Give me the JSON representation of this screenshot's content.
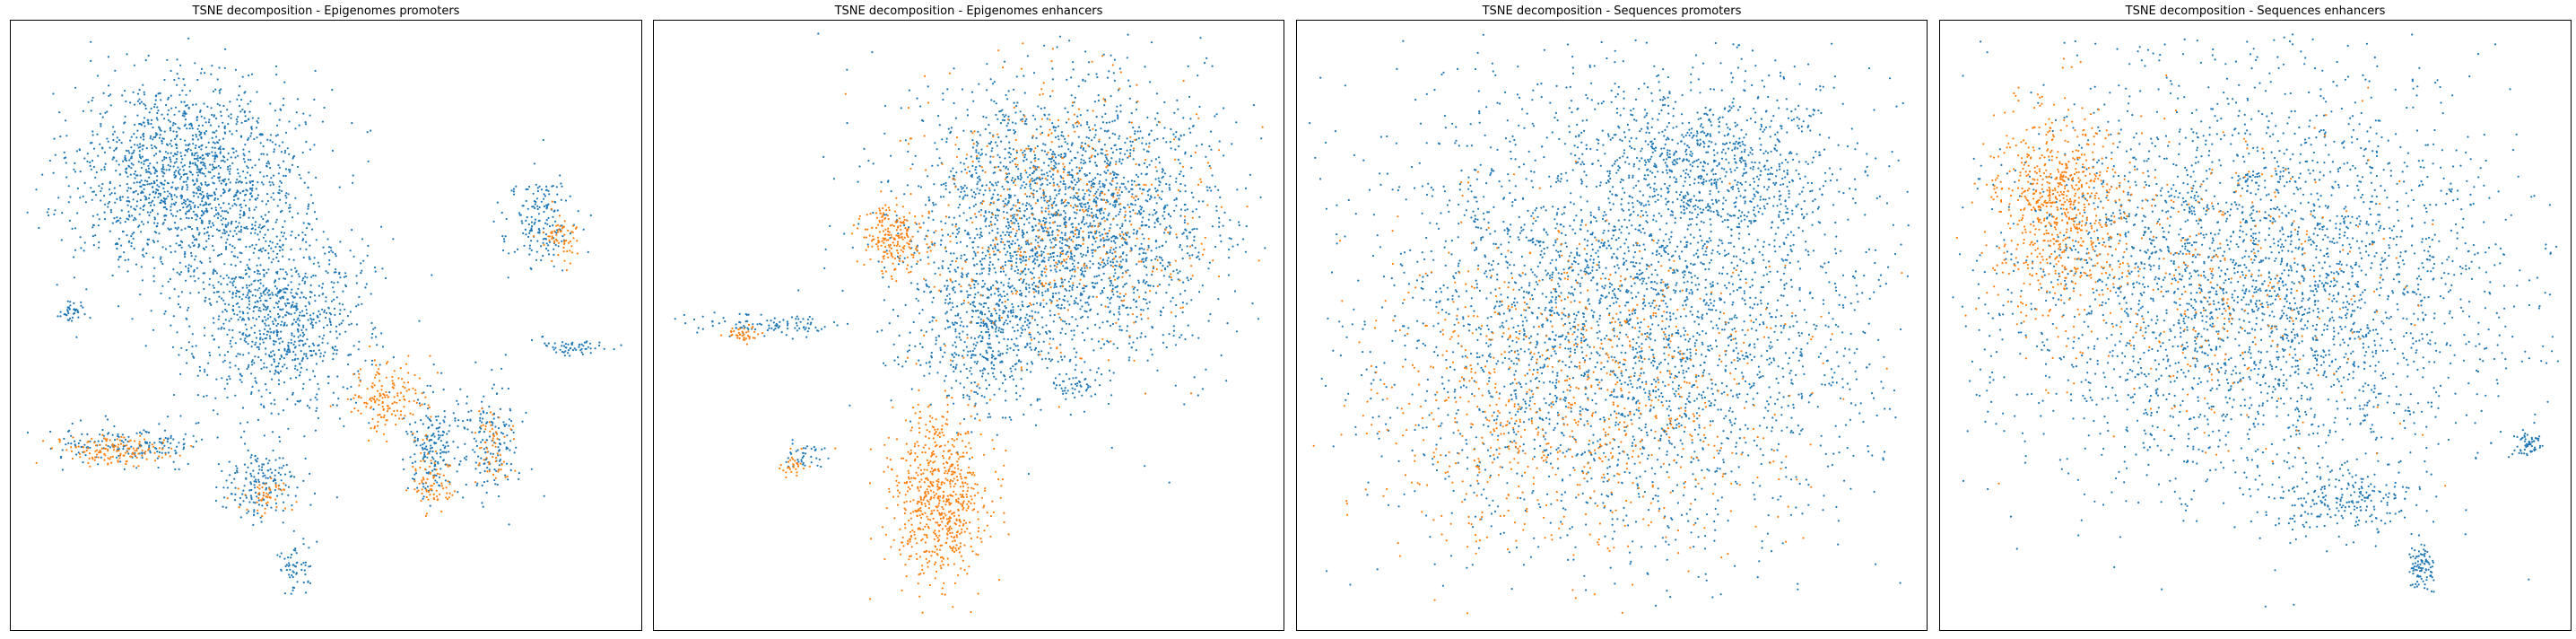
{
  "colors": {
    "blue": "#1f77b4",
    "orange": "#ff7f0e",
    "frame": "#000000",
    "background": "#ffffff"
  },
  "chart_data": [
    {
      "type": "scatter",
      "title": "TSNE decomposition - Epigenomes promoters",
      "xlabel": "",
      "ylabel": "",
      "grid": false,
      "legend": "none",
      "xlim": [
        -1,
        1
      ],
      "ylim": [
        -1,
        1
      ],
      "series": [
        {
          "color": "#1f77b4",
          "clusters": [
            {
              "cx": -0.45,
              "cy": 0.5,
              "rx": 0.38,
              "ry": 0.36,
              "n": 1600
            },
            {
              "cx": -0.15,
              "cy": 0.02,
              "rx": 0.3,
              "ry": 0.3,
              "n": 900
            },
            {
              "cx": 0.7,
              "cy": 0.35,
              "rx": 0.12,
              "ry": 0.15,
              "n": 170
            },
            {
              "cx": -0.65,
              "cy": -0.4,
              "rx": 0.25,
              "ry": 0.07,
              "n": 170
            },
            {
              "cx": 0.35,
              "cy": -0.42,
              "rx": 0.08,
              "ry": 0.18,
              "n": 180
            },
            {
              "cx": -0.22,
              "cy": -0.55,
              "rx": 0.13,
              "ry": 0.12,
              "n": 170
            },
            {
              "cx": 0.55,
              "cy": -0.4,
              "rx": 0.1,
              "ry": 0.2,
              "n": 160
            },
            {
              "cx": -0.1,
              "cy": -0.82,
              "rx": 0.06,
              "ry": 0.1,
              "n": 60
            },
            {
              "cx": 0.82,
              "cy": -0.07,
              "rx": 0.12,
              "ry": 0.03,
              "n": 60
            },
            {
              "cx": -0.85,
              "cy": 0.05,
              "rx": 0.05,
              "ry": 0.04,
              "n": 40
            }
          ]
        },
        {
          "color": "#ff7f0e",
          "clusters": [
            {
              "cx": 0.2,
              "cy": -0.25,
              "rx": 0.12,
              "ry": 0.12,
              "n": 160
            },
            {
              "cx": -0.68,
              "cy": -0.43,
              "rx": 0.2,
              "ry": 0.05,
              "n": 140
            },
            {
              "cx": 0.35,
              "cy": -0.52,
              "rx": 0.07,
              "ry": 0.12,
              "n": 80
            },
            {
              "cx": 0.55,
              "cy": -0.42,
              "rx": 0.06,
              "ry": 0.15,
              "n": 60
            },
            {
              "cx": 0.78,
              "cy": 0.3,
              "rx": 0.06,
              "ry": 0.1,
              "n": 60
            },
            {
              "cx": -0.2,
              "cy": -0.58,
              "rx": 0.08,
              "ry": 0.06,
              "n": 50
            }
          ]
        }
      ]
    },
    {
      "type": "scatter",
      "title": "TSNE decomposition - Epigenomes enhancers",
      "xlabel": "",
      "ylabel": "",
      "grid": false,
      "legend": "none",
      "xlim": [
        -1,
        1
      ],
      "ylim": [
        -1,
        1
      ],
      "series": [
        {
          "color": "#1f77b4",
          "clusters": [
            {
              "cx": 0.3,
              "cy": 0.35,
              "rx": 0.52,
              "ry": 0.48,
              "n": 2500
            },
            {
              "cx": 0.05,
              "cy": -0.05,
              "rx": 0.22,
              "ry": 0.25,
              "n": 400
            },
            {
              "cx": -0.65,
              "cy": 0.0,
              "rx": 0.25,
              "ry": 0.04,
              "n": 100
            },
            {
              "cx": -0.55,
              "cy": -0.45,
              "rx": 0.07,
              "ry": 0.05,
              "n": 40
            },
            {
              "cx": 0.35,
              "cy": -0.2,
              "rx": 0.06,
              "ry": 0.05,
              "n": 40
            }
          ]
        },
        {
          "color": "#ff7f0e",
          "clusters": [
            {
              "cx": -0.1,
              "cy": -0.58,
              "rx": 0.16,
              "ry": 0.28,
              "n": 700
            },
            {
              "cx": -0.25,
              "cy": 0.3,
              "rx": 0.1,
              "ry": 0.12,
              "n": 200
            },
            {
              "cx": 0.3,
              "cy": 0.35,
              "rx": 0.5,
              "ry": 0.45,
              "n": 500
            },
            {
              "cx": -0.75,
              "cy": -0.03,
              "rx": 0.06,
              "ry": 0.03,
              "n": 40
            },
            {
              "cx": -0.58,
              "cy": -0.48,
              "rx": 0.05,
              "ry": 0.04,
              "n": 30
            }
          ]
        }
      ]
    },
    {
      "type": "scatter",
      "title": "TSNE decomposition - Sequences promoters",
      "xlabel": "",
      "ylabel": "",
      "grid": false,
      "legend": "none",
      "xlim": [
        -1,
        1
      ],
      "ylim": [
        -1,
        1
      ],
      "series": [
        {
          "color": "#1f77b4",
          "clusters": [
            {
              "cx": 0.05,
              "cy": 0.05,
              "rx": 0.82,
              "ry": 0.78,
              "n": 3200
            },
            {
              "cx": 0.35,
              "cy": 0.55,
              "rx": 0.4,
              "ry": 0.3,
              "n": 700
            }
          ]
        },
        {
          "color": "#ff7f0e",
          "clusters": [
            {
              "cx": -0.15,
              "cy": -0.25,
              "rx": 0.75,
              "ry": 0.55,
              "n": 900
            }
          ]
        }
      ]
    },
    {
      "type": "scatter",
      "title": "TSNE decomposition - Sequences enhancers",
      "xlabel": "",
      "ylabel": "",
      "grid": false,
      "legend": "none",
      "xlim": [
        -1,
        1
      ],
      "ylim": [
        -1,
        1
      ],
      "series": [
        {
          "color": "#1f77b4",
          "clusters": [
            {
              "cx": 0.0,
              "cy": 0.15,
              "rx": 0.85,
              "ry": 0.72,
              "n": 3200
            },
            {
              "cx": 0.9,
              "cy": -0.4,
              "rx": 0.05,
              "ry": 0.05,
              "n": 60
            },
            {
              "cx": 0.55,
              "cy": -0.82,
              "rx": 0.04,
              "ry": 0.08,
              "n": 90
            },
            {
              "cx": 0.3,
              "cy": -0.6,
              "rx": 0.25,
              "ry": 0.12,
              "n": 200
            }
          ]
        },
        {
          "color": "#ff7f0e",
          "clusters": [
            {
              "cx": -0.65,
              "cy": 0.4,
              "rx": 0.22,
              "ry": 0.32,
              "n": 700
            },
            {
              "cx": -0.2,
              "cy": 0.15,
              "rx": 0.6,
              "ry": 0.55,
              "n": 350
            }
          ]
        }
      ]
    }
  ]
}
